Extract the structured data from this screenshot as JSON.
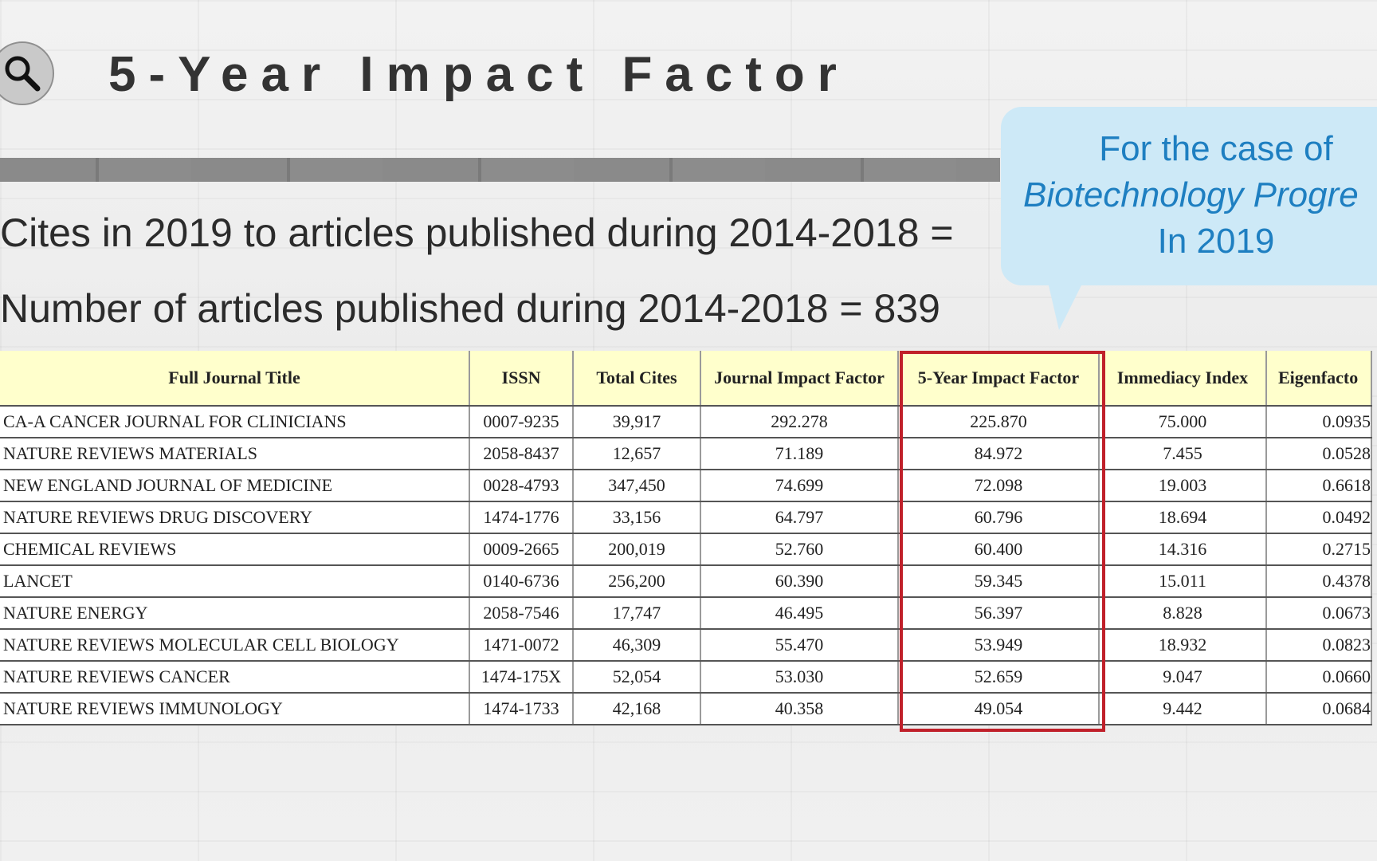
{
  "slide": {
    "title": "5-Year Impact Factor",
    "line1": "Cites in 2019 to articles published during 2014-2018 =",
    "line2": "Number of articles published during 2014-2018 = 839"
  },
  "callout": {
    "line1": "For the case of",
    "line2": "Biotechnology Progre",
    "line3": "In 2019",
    "color": "#1e7fc1",
    "background": "#cde9f7"
  },
  "table": {
    "headers": [
      "Full Journal Title",
      "ISSN",
      "Total Cites",
      "Journal Impact Factor",
      "5-Year Impact Factor",
      "Immediacy Index",
      "Eigenfacto"
    ],
    "rows": [
      [
        "CA-A CANCER JOURNAL FOR CLINICIANS",
        "0007-9235",
        "39,917",
        "292.278",
        "225.870",
        "75.000",
        "0.0935"
      ],
      [
        "NATURE REVIEWS MATERIALS",
        "2058-8437",
        "12,657",
        "71.189",
        "84.972",
        "7.455",
        "0.0528"
      ],
      [
        "NEW ENGLAND JOURNAL OF MEDICINE",
        "0028-4793",
        "347,450",
        "74.699",
        "72.098",
        "19.003",
        "0.6618"
      ],
      [
        "NATURE REVIEWS DRUG DISCOVERY",
        "1474-1776",
        "33,156",
        "64.797",
        "60.796",
        "18.694",
        "0.0492"
      ],
      [
        "CHEMICAL REVIEWS",
        "0009-2665",
        "200,019",
        "52.760",
        "60.400",
        "14.316",
        "0.2715"
      ],
      [
        "LANCET",
        "0140-6736",
        "256,200",
        "60.390",
        "59.345",
        "15.011",
        "0.4378"
      ],
      [
        "NATURE ENERGY",
        "2058-7546",
        "17,747",
        "46.495",
        "56.397",
        "8.828",
        "0.0673"
      ],
      [
        "NATURE REVIEWS MOLECULAR CELL BIOLOGY",
        "1471-0072",
        "46,309",
        "55.470",
        "53.949",
        "18.932",
        "0.0823"
      ],
      [
        "NATURE REVIEWS CANCER",
        "1474-175X",
        "52,054",
        "53.030",
        "52.659",
        "9.047",
        "0.0660"
      ],
      [
        "NATURE REVIEWS IMMUNOLOGY",
        "1474-1733",
        "42,168",
        "40.358",
        "49.054",
        "9.442",
        "0.0684"
      ]
    ],
    "header_background": "#ffffcc",
    "highlight_color": "#c0202a"
  }
}
